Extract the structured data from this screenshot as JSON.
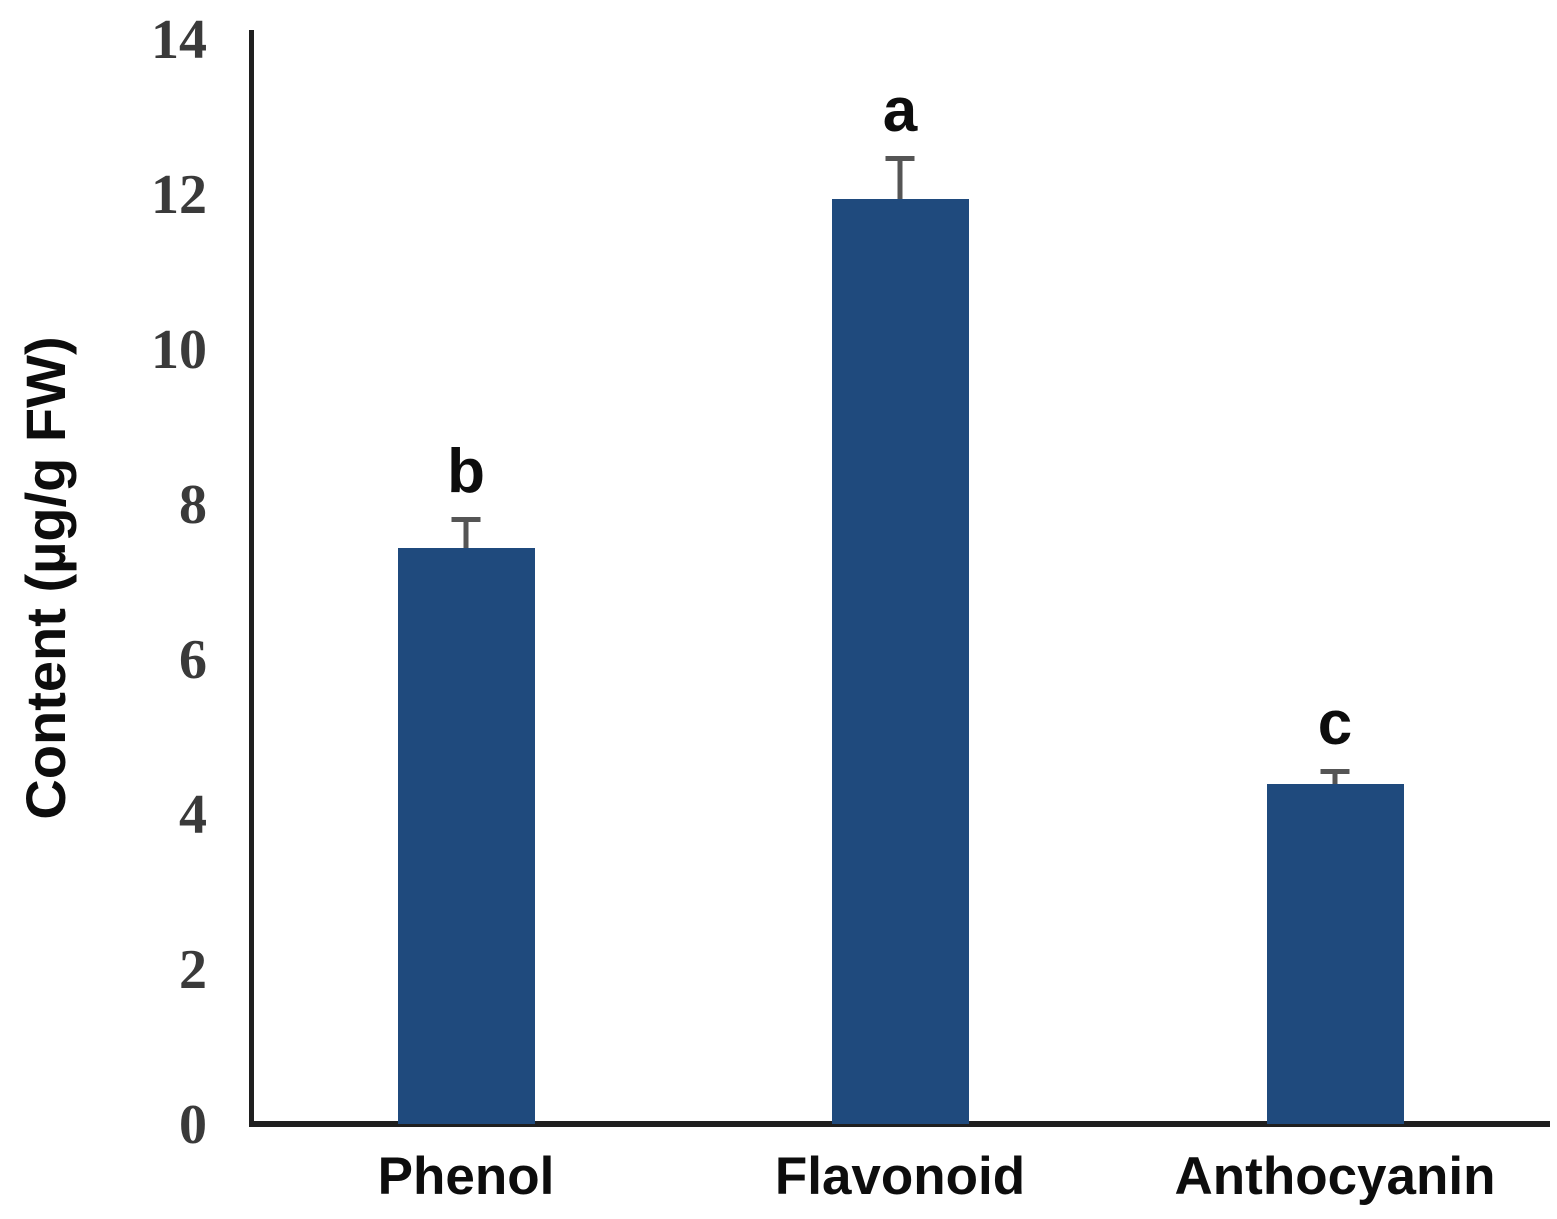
{
  "chart_data": {
    "type": "bar",
    "categories": [
      "Phenol",
      "Flavonoid",
      "Anthocyanin"
    ],
    "values": [
      7.45,
      11.95,
      4.4
    ],
    "error_bars": [
      0.4,
      0.55,
      0.2
    ],
    "significance_letters": [
      "b",
      "a",
      "c"
    ],
    "title": "",
    "xlabel": "",
    "ylabel": "Content (µg/g FW)",
    "ylim": [
      0,
      14
    ],
    "yticks": [
      0,
      2,
      4,
      6,
      8,
      10,
      12,
      14
    ],
    "grid": false,
    "legend": false,
    "colors": {
      "bar": "#1F4A7D",
      "error_bar": "#555555",
      "axis": "#1f1f1f",
      "tick_label": "#3a3a3a",
      "text": "#0d0d0d"
    }
  }
}
